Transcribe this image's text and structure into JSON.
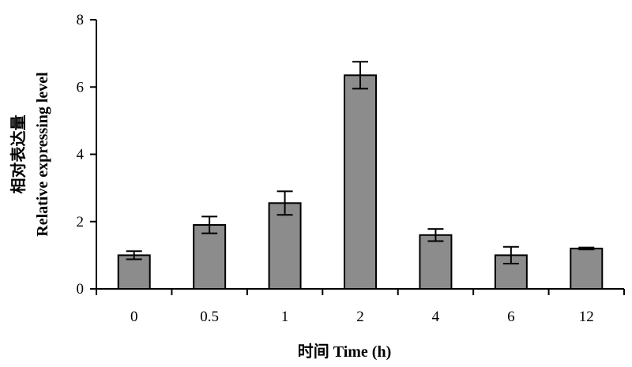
{
  "chart_data": {
    "type": "bar",
    "categories": [
      "0",
      "0.5",
      "1",
      "2",
      "4",
      "6",
      "12"
    ],
    "values": [
      1.0,
      1.9,
      2.55,
      6.35,
      1.6,
      1.0,
      1.2
    ],
    "errors": [
      0.12,
      0.25,
      0.35,
      0.4,
      0.18,
      0.25,
      0.03
    ],
    "xlabel": "时间 Time (h)",
    "ylabel_line1": "相对表达量",
    "ylabel_line2": "Relative expressing level",
    "ylim": [
      0,
      8
    ],
    "yticks": [
      0,
      2,
      4,
      6,
      8
    ],
    "bar_color": "#8c8c8c",
    "grid": false
  }
}
